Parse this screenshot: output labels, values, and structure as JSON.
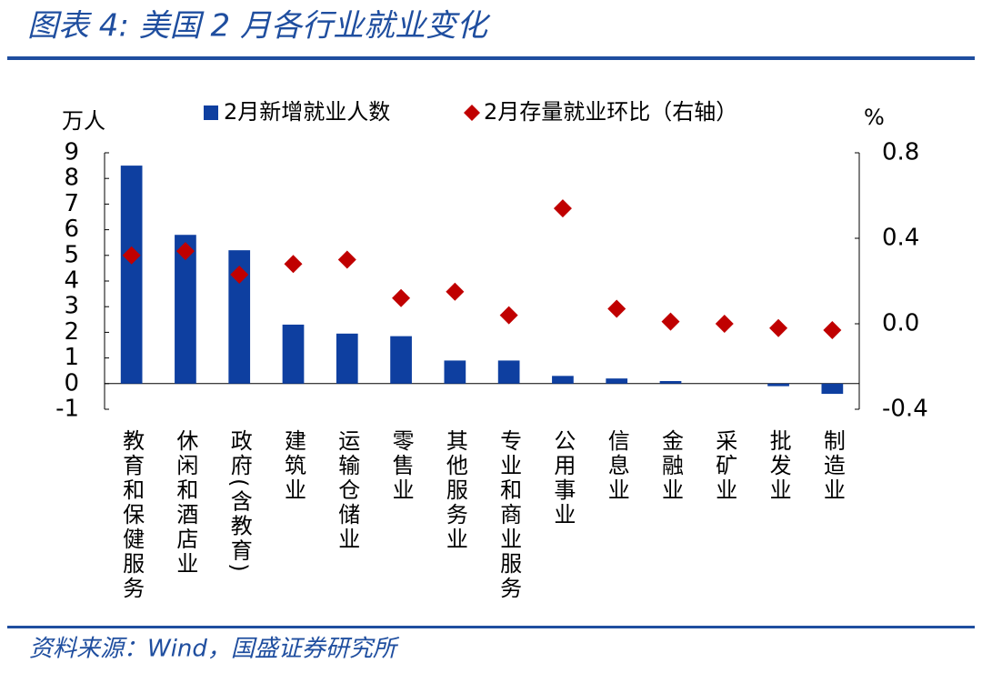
{
  "chart_data": {
    "type": "bar",
    "title": "图表 4:  美国 2 月各行业就业变化",
    "source": "资料来源：Wind，国盛证券研究所",
    "ylabel": "万人",
    "y2label": "%",
    "categories": [
      "教育和保健服务",
      "休闲和酒店业",
      "政府(含教育)",
      "建筑业",
      "运输仓储业",
      "零售业",
      "其他服务业",
      "专业和商业服务",
      "公用事业",
      "信息业",
      "金融业",
      "采矿业",
      "批发业",
      "制造业"
    ],
    "series": [
      {
        "name": "2月新增就业人数",
        "color": "#0e3fa0",
        "values": [
          8.5,
          5.8,
          5.2,
          2.3,
          1.95,
          1.85,
          0.9,
          0.9,
          0.3,
          0.2,
          0.1,
          0,
          -0.1,
          -0.4
        ]
      },
      {
        "name": "2月存量就业环比（右轴）",
        "color": "#c00000",
        "axis": "y2",
        "marker": "diamond",
        "values": [
          0.32,
          0.34,
          0.23,
          0.28,
          0.3,
          0.12,
          0.15,
          0.04,
          0.54,
          0.07,
          0.01,
          0,
          -0.02,
          -0.03
        ]
      }
    ],
    "ylim": [
      -1,
      9
    ],
    "yticks": [
      -1,
      0,
      1,
      2,
      3,
      4,
      5,
      6,
      7,
      8,
      9
    ],
    "y2lim": [
      -0.4,
      0.8
    ],
    "y2ticks": [
      -0.4,
      {
        "value": 0,
        "label": "0.0"
      },
      0.4,
      0.8
    ]
  }
}
